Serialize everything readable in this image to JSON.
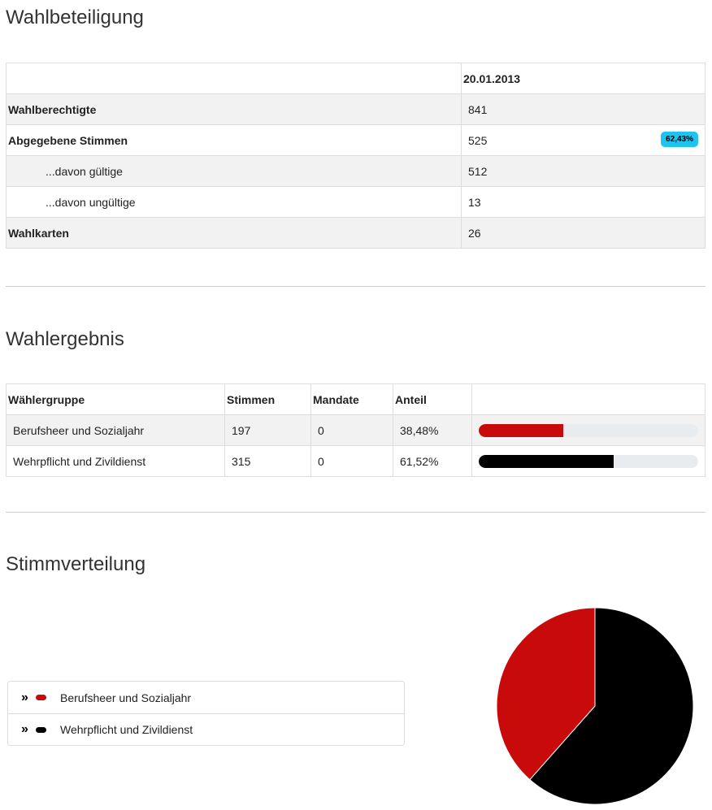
{
  "turnout": {
    "title": "Wahlbeteiligung",
    "date_header": "20.01.2013",
    "rows": [
      {
        "label": "Wahlberechtigte",
        "value": "841"
      },
      {
        "label": "Abgegebene Stimmen",
        "value": "525",
        "badge": "62,43%"
      },
      {
        "label": "...davon gültige",
        "value": "512"
      },
      {
        "label": "...davon ungültige",
        "value": "13"
      },
      {
        "label": "Wahlkarten",
        "value": "26"
      }
    ]
  },
  "results": {
    "title": "Wahlergebnis",
    "headers": {
      "group": "Wählergruppe",
      "votes": "Stimmen",
      "seats": "Mandate",
      "share": "Anteil"
    },
    "rows": [
      {
        "group": "Berufsheer und Sozialjahr",
        "votes": "197",
        "seats": "0",
        "share": "38,48%",
        "share_value": 38.48,
        "color": "#c90a0a"
      },
      {
        "group": "Wehrpflicht und Zivildienst",
        "votes": "315",
        "seats": "0",
        "share": "61,52%",
        "share_value": 61.52,
        "color": "#000000"
      }
    ]
  },
  "distribution": {
    "title": "Stimmverteilung",
    "legend": [
      {
        "label": "Berufsheer und Sozialjahr",
        "color": "#c90a0a",
        "icon": "double-chevron-right-icon"
      },
      {
        "label": "Wehrpflicht und Zivildienst",
        "color": "#000000",
        "icon": "double-chevron-right-icon"
      }
    ]
  },
  "chart_data": {
    "type": "pie",
    "categories": [
      "Berufsheer und Sozialjahr",
      "Wehrpflicht und Zivildienst"
    ],
    "values": [
      197,
      315
    ],
    "colors": [
      "#c90a0a",
      "#000000"
    ],
    "title": "Stimmverteilung"
  }
}
